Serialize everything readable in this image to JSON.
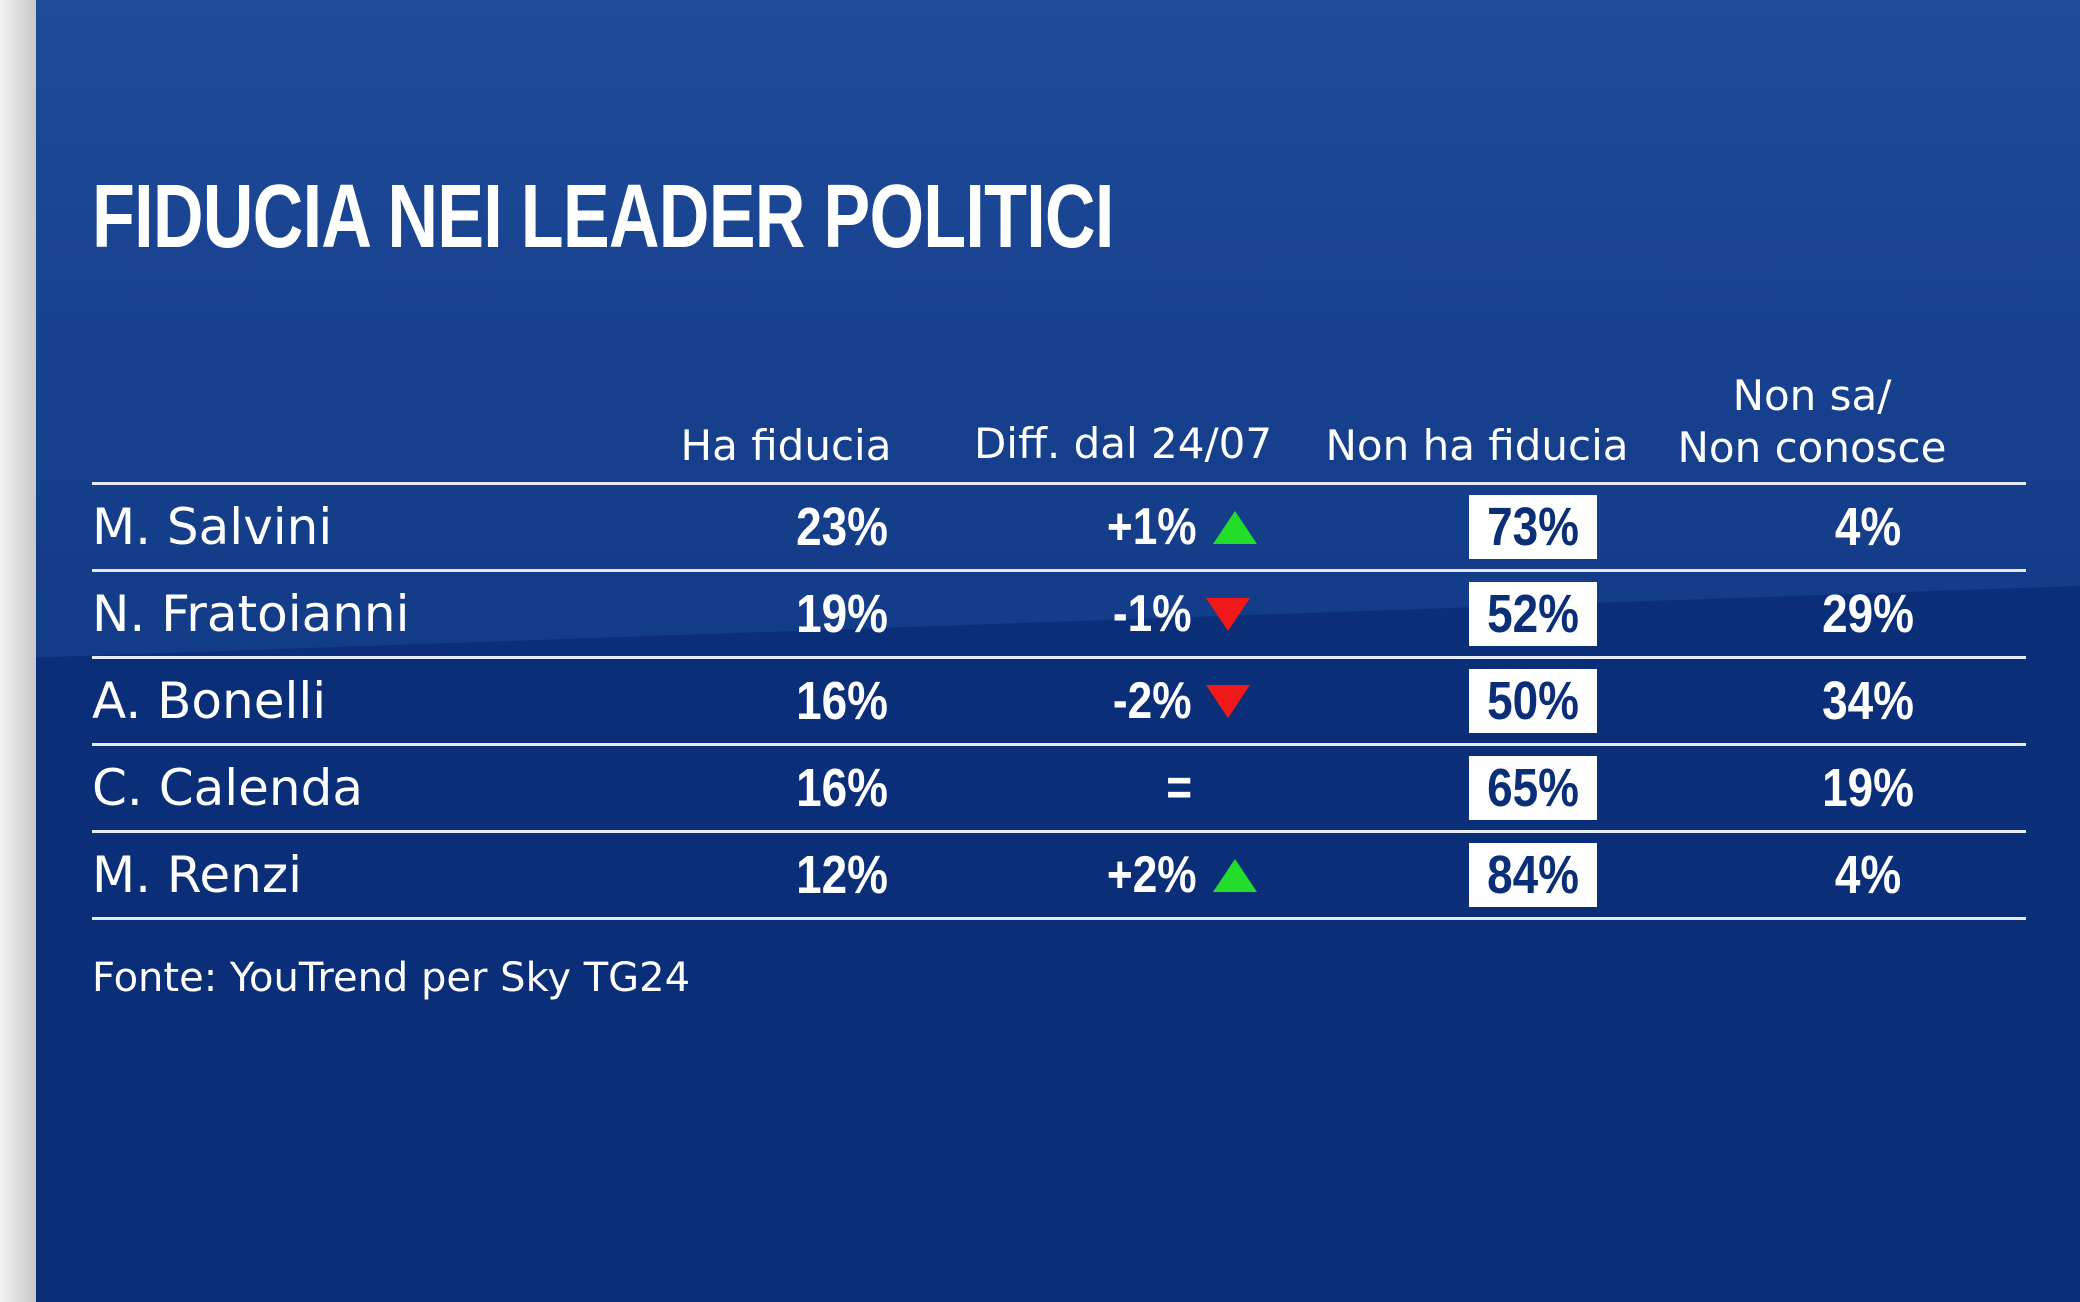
{
  "chart_data": {
    "type": "table",
    "title": "FIDUCIA NEI LEADER POLITICI",
    "columns": [
      "Ha fiducia",
      "Diff. dal 24/07",
      "Non ha fiducia",
      "Non sa/\nNon conosce"
    ],
    "column_line1": [
      "Ha fiducia",
      "Diff. dal 24/07",
      "Non ha fiducia",
      "Non sa/"
    ],
    "column_line2": [
      "",
      "",
      "",
      "Non conosce"
    ],
    "rows": [
      {
        "leader": "M. Salvini",
        "ha_fiducia": "23%",
        "diff": "+1%",
        "trend": "up",
        "non_ha_fiducia": "73%",
        "non_sa": "4%"
      },
      {
        "leader": "N. Fratoianni",
        "ha_fiducia": "19%",
        "diff": "-1%",
        "trend": "down",
        "non_ha_fiducia": "52%",
        "non_sa": "29%"
      },
      {
        "leader": "A. Bonelli",
        "ha_fiducia": "16%",
        "diff": "-2%",
        "trend": "down",
        "non_ha_fiducia": "50%",
        "non_sa": "34%"
      },
      {
        "leader": "C. Calenda",
        "ha_fiducia": "16%",
        "diff": "=",
        "trend": "none",
        "non_ha_fiducia": "65%",
        "non_sa": "19%"
      },
      {
        "leader": "M. Renzi",
        "ha_fiducia": "12%",
        "diff": "+2%",
        "trend": "up",
        "non_ha_fiducia": "84%",
        "non_sa": "4%"
      }
    ],
    "source": "Fonte: YouTrend per Sky TG24"
  },
  "colors": {
    "background": "#0b2e78",
    "text": "#ffffff",
    "box_text": "#0b2e78",
    "up_arrow": "#22dd2a",
    "down_arrow": "#f01818"
  },
  "icons": {
    "up": "green-triangle-up-icon",
    "down": "red-triangle-down-icon"
  }
}
